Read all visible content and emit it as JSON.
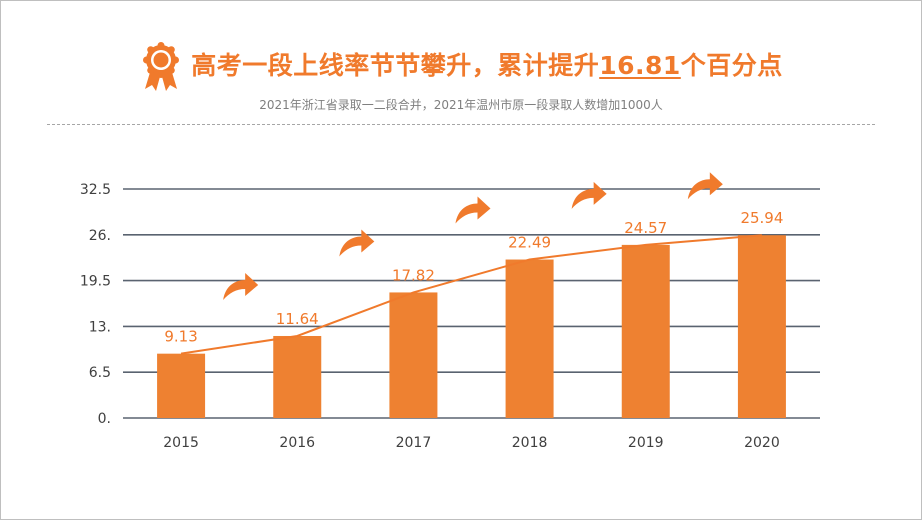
{
  "header": {
    "title_prefix": "高考一段上线率节节攀升，累计提升",
    "title_highlight": "16.81",
    "title_suffix": "个百分点",
    "subtitle": "2021年浙江省录取一二段合并，2021年温州市原一段录取人数增加1000人"
  },
  "colors": {
    "accent": "#f07a2c",
    "bar": "#ee8131",
    "grid": "#5a6370",
    "tick_text": "#404040"
  },
  "icons": {
    "badge": "award-ribbon-icon",
    "arrow": "curved-arrow-icon"
  },
  "chart_data": {
    "type": "bar",
    "categories": [
      "2015",
      "2016",
      "2017",
      "2018",
      "2019",
      "2020"
    ],
    "values": [
      9.13,
      11.64,
      17.82,
      22.49,
      24.57,
      25.94
    ],
    "value_labels": [
      "9.13",
      "11.64",
      "17.82",
      "22.49",
      "24.57",
      "25.94"
    ],
    "yticks": [
      "0.",
      "6.5",
      "13.",
      "19.5",
      "26.",
      "32.5"
    ],
    "ytick_values": [
      0,
      6.5,
      13,
      19.5,
      26,
      32.5
    ],
    "ylim": [
      0,
      32.5
    ],
    "trend_line": true,
    "grid": true,
    "xlabel": "",
    "ylabel": ""
  }
}
